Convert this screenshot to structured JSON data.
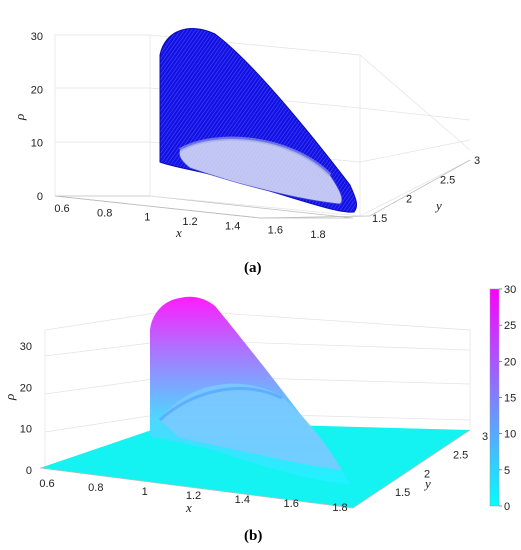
{
  "chart_data": [
    {
      "panel": "a",
      "caption": "(a)",
      "type": "surface",
      "render": "mesh",
      "mesh_color": "#1010e0",
      "xlabel": "x",
      "ylabel": "y",
      "zlabel": "ρ",
      "x_ticks": [
        "0.6",
        "0.8",
        "1",
        "1.2",
        "1.4",
        "1.6",
        "1.8"
      ],
      "y_ticks": [
        "1.5",
        "2",
        "2.5",
        "3"
      ],
      "z_ticks": [
        "0",
        "10",
        "20",
        "30"
      ],
      "xlim": [
        0.55,
        1.9
      ],
      "ylim": [
        1.3,
        3.0
      ],
      "zlim": [
        0,
        35
      ],
      "grid": true,
      "surface_outline": {
        "x": [
          1.07,
          1.1,
          1.15,
          1.2,
          1.25,
          1.3,
          1.4,
          1.5,
          1.6,
          1.7,
          1.8,
          1.85
        ],
        "rho_max": [
          28,
          30,
          30,
          29,
          27,
          25,
          21,
          16,
          11,
          6,
          2,
          0
        ]
      }
    },
    {
      "panel": "b",
      "caption": "(b)",
      "type": "surface",
      "render": "colormap",
      "xlabel": "x",
      "ylabel": "y",
      "zlabel": "ρ",
      "x_ticks": [
        "0.6",
        "0.8",
        "1",
        "1.2",
        "1.4",
        "1.6",
        "1.8"
      ],
      "y_ticks": [
        "1.5",
        "2",
        "2.5",
        "3"
      ],
      "z_ticks": [
        "0",
        "10",
        "20",
        "30"
      ],
      "xlim": [
        0.55,
        1.9
      ],
      "ylim": [
        1.3,
        3.0
      ],
      "zlim": [
        0,
        35
      ],
      "grid": true,
      "colorbar": {
        "ticks": [
          "0",
          "5",
          "10",
          "15",
          "20",
          "25",
          "30"
        ],
        "range": [
          0,
          30
        ],
        "color_low": "#00ffff",
        "color_high": "#ff00ff"
      },
      "surface_outline": {
        "x": [
          1.07,
          1.1,
          1.15,
          1.2,
          1.25,
          1.3,
          1.4,
          1.5,
          1.6,
          1.7,
          1.8,
          1.85
        ],
        "rho_max": [
          27,
          29,
          30,
          29,
          27,
          25,
          21,
          16,
          11,
          6,
          2,
          0
        ]
      }
    }
  ]
}
